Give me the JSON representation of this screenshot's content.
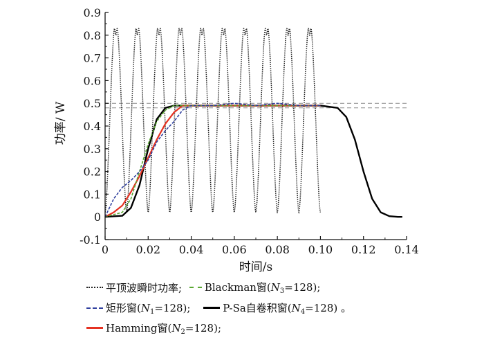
{
  "chart_data": {
    "type": "line",
    "xlabel": "时间/s",
    "ylabel": "功率/ W",
    "xlim": [
      0,
      0.14
    ],
    "ylim": [
      -0.1,
      0.9
    ],
    "xticks": [
      "0",
      "0.02",
      "0.04",
      "0.06",
      "0.08",
      "0.10",
      "0.12",
      "0.14"
    ],
    "yticks": [
      "-0.1",
      "0",
      "0.1",
      "0.2",
      "0.3",
      "0.4",
      "0.5",
      "0.6",
      "0.7",
      "0.8",
      "0.9"
    ],
    "reference_lines": [
      0.5,
      0.48
    ],
    "series": [
      {
        "name": "平顶波瞬时功率",
        "style": "dotted",
        "color": "#222222",
        "period": 0.01,
        "x_range": [
          0,
          0.1
        ],
        "peak": 0.87,
        "dip": 0.8,
        "trough": 0.02
      },
      {
        "name": "矩形窗",
        "window_length": "N1=128",
        "style": "dash",
        "color": "#2f3f9e",
        "x": [
          0,
          0.004,
          0.008,
          0.012,
          0.016,
          0.02,
          0.024,
          0.028,
          0.032,
          0.036,
          0.04,
          0.05,
          0.06,
          0.07,
          0.08,
          0.09,
          0.1
        ],
        "y": [
          0,
          0.08,
          0.13,
          0.16,
          0.2,
          0.25,
          0.33,
          0.38,
          0.42,
          0.47,
          0.49,
          0.49,
          0.5,
          0.49,
          0.5,
          0.49,
          0.49
        ]
      },
      {
        "name": "Blackman窗",
        "window_length": "N3=128",
        "style": "dash",
        "color": "#5aa832",
        "x": [
          0,
          0.008,
          0.012,
          0.016,
          0.02,
          0.024,
          0.028,
          0.032,
          0.036,
          0.04,
          0.1
        ],
        "y": [
          0,
          0.02,
          0.08,
          0.2,
          0.32,
          0.42,
          0.47,
          0.49,
          0.49,
          0.49,
          0.49
        ]
      },
      {
        "name": "Hamming窗",
        "window_length": "N2=128",
        "style": "solid",
        "color": "#e53222",
        "x": [
          0,
          0.004,
          0.008,
          0.012,
          0.016,
          0.02,
          0.024,
          0.028,
          0.032,
          0.036,
          0.04,
          0.1
        ],
        "y": [
          0,
          0.02,
          0.05,
          0.11,
          0.18,
          0.26,
          0.34,
          0.41,
          0.46,
          0.49,
          0.49,
          0.49
        ]
      },
      {
        "name": "P-Sa自卷积窗",
        "window_length": "N4=128",
        "style": "solid",
        "color": "#000000",
        "x": [
          0,
          0.008,
          0.012,
          0.016,
          0.02,
          0.024,
          0.028,
          0.032,
          0.036,
          0.04,
          0.1,
          0.108,
          0.112,
          0.116,
          0.12,
          0.124,
          0.128,
          0.132,
          0.136,
          0.138
        ],
        "y": [
          0,
          0.005,
          0.04,
          0.14,
          0.3,
          0.43,
          0.48,
          0.49,
          0.49,
          0.49,
          0.49,
          0.48,
          0.44,
          0.34,
          0.2,
          0.08,
          0.02,
          0.003,
          0,
          0
        ]
      }
    ]
  },
  "legend": {
    "row1": {
      "flat_top": "平顶波瞬时功率;",
      "blackman_name": "Blackman窗(",
      "blackman_n": "N",
      "blackman_sub": "3",
      "blackman_val": "=128);"
    },
    "row2": {
      "rect_name": "矩形窗(",
      "rect_n": "N",
      "rect_sub": "1",
      "rect_val": "=128);",
      "psa_name": "P-Sa自卷积窗(",
      "psa_n": "N",
      "psa_sub": "4",
      "psa_val": "=128) 。"
    },
    "row3": {
      "hamming_name": "Hamming窗(",
      "hamming_n": "N",
      "hamming_sub": "2",
      "hamming_val": "=128);"
    }
  }
}
